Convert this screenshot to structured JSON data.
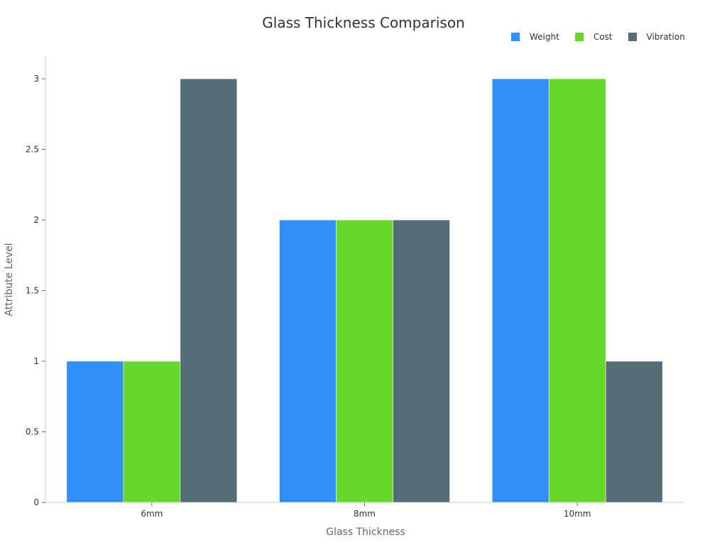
{
  "chart_data": {
    "type": "bar",
    "title": "Glass Thickness Comparison",
    "xlabel": "Glass Thickness",
    "ylabel": "Attribute Level",
    "categories": [
      "6mm",
      "8mm",
      "10mm"
    ],
    "series": [
      {
        "name": "Weight",
        "color": "#2f91f7",
        "values": [
          1,
          2,
          3
        ]
      },
      {
        "name": "Cost",
        "color": "#66d92a",
        "values": [
          1,
          2,
          3
        ]
      },
      {
        "name": "Vibration",
        "color": "#546e78",
        "values": [
          3,
          2,
          1
        ]
      }
    ],
    "yticks": [
      "0",
      "0.5",
      "1",
      "1.5",
      "2",
      "2.5",
      "3"
    ],
    "ylim": [
      0,
      3
    ],
    "grid": false,
    "legend_position": "top-right"
  }
}
